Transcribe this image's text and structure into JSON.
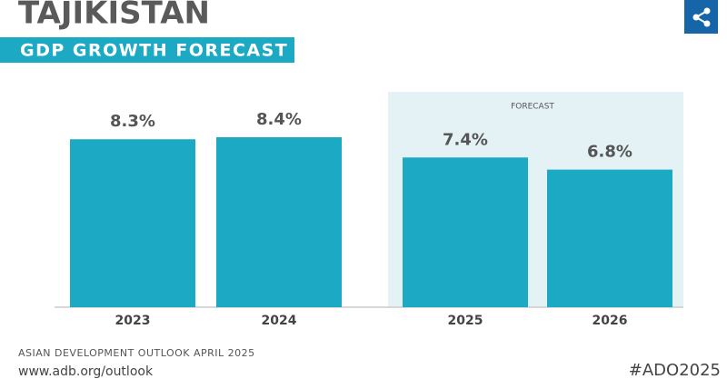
{
  "chart_data": {
    "type": "bar",
    "title": "TAJIKISTAN",
    "subtitle": "GDP GROWTH FORECAST",
    "categories": [
      "2023",
      "2024",
      "2025",
      "2026"
    ],
    "values": [
      8.3,
      8.4,
      7.4,
      6.8
    ],
    "value_labels": [
      "8.3%",
      "8.4%",
      "7.4%",
      "6.8%"
    ],
    "color": "#1ba9c4",
    "annotation": "FORECAST",
    "source": "ASIAN DEVELOPMENT OUTLOOK APRIL 2025",
    "url": "www.adb.org/outlook",
    "hashtag": "#ADO2025"
  }
}
